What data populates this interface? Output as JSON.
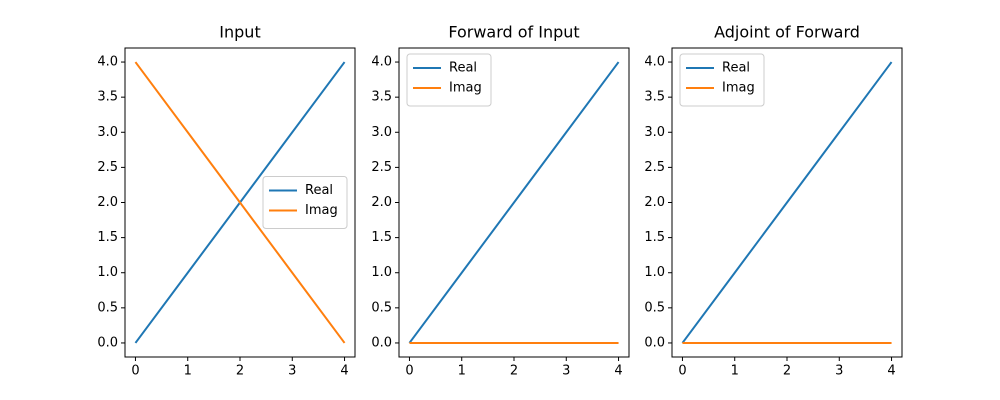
{
  "chart_data": [
    {
      "type": "line",
      "title": "Input",
      "x": [
        0,
        1,
        2,
        3,
        4
      ],
      "series": [
        {
          "name": "Real",
          "color": "#1f77b4",
          "values": [
            0,
            1,
            2,
            3,
            4
          ]
        },
        {
          "name": "Imag",
          "color": "#ff7f0e",
          "values": [
            4,
            3,
            2,
            1,
            0
          ]
        }
      ],
      "xlim": [
        -0.2,
        4.2
      ],
      "ylim": [
        -0.2,
        4.2
      ],
      "xticks": [
        0,
        1,
        2,
        3,
        4
      ],
      "yticks": [
        {
          "value": 0,
          "label": "0.0"
        },
        {
          "value": 0.5,
          "label": "0.5"
        },
        {
          "value": 1,
          "label": "1.0"
        },
        {
          "value": 1.5,
          "label": "1.5"
        },
        {
          "value": 2,
          "label": "2.0"
        },
        {
          "value": 2.5,
          "label": "2.5"
        },
        {
          "value": 3,
          "label": "3.0"
        },
        {
          "value": 3.5,
          "label": "3.5"
        },
        {
          "value": 4,
          "label": "4.0"
        }
      ],
      "legend": "center right"
    },
    {
      "type": "line",
      "title": "Forward of Input",
      "x": [
        0,
        1,
        2,
        3,
        4
      ],
      "series": [
        {
          "name": "Real",
          "color": "#1f77b4",
          "values": [
            0,
            1,
            2,
            3,
            4
          ]
        },
        {
          "name": "Imag",
          "color": "#ff7f0e",
          "values": [
            0,
            0,
            0,
            0,
            0
          ]
        }
      ],
      "xlim": [
        -0.2,
        4.2
      ],
      "ylim": [
        -0.2,
        4.2
      ],
      "xticks": [
        0,
        1,
        2,
        3,
        4
      ],
      "yticks": [
        {
          "value": 0,
          "label": "0.0"
        },
        {
          "value": 0.5,
          "label": "0.5"
        },
        {
          "value": 1,
          "label": "1.0"
        },
        {
          "value": 1.5,
          "label": "1.5"
        },
        {
          "value": 2,
          "label": "2.0"
        },
        {
          "value": 2.5,
          "label": "2.5"
        },
        {
          "value": 3,
          "label": "3.0"
        },
        {
          "value": 3.5,
          "label": "3.5"
        },
        {
          "value": 4,
          "label": "4.0"
        }
      ],
      "legend": "upper left"
    },
    {
      "type": "line",
      "title": "Adjoint of Forward",
      "x": [
        0,
        1,
        2,
        3,
        4
      ],
      "series": [
        {
          "name": "Real",
          "color": "#1f77b4",
          "values": [
            0,
            1,
            2,
            3,
            4
          ]
        },
        {
          "name": "Imag",
          "color": "#ff7f0e",
          "values": [
            0,
            0,
            0,
            0,
            0
          ]
        }
      ],
      "xlim": [
        -0.2,
        4.2
      ],
      "ylim": [
        -0.2,
        4.2
      ],
      "xticks": [
        0,
        1,
        2,
        3,
        4
      ],
      "yticks": [
        {
          "value": 0,
          "label": "0.0"
        },
        {
          "value": 0.5,
          "label": "0.5"
        },
        {
          "value": 1,
          "label": "1.0"
        },
        {
          "value": 1.5,
          "label": "1.5"
        },
        {
          "value": 2,
          "label": "2.0"
        },
        {
          "value": 2.5,
          "label": "2.5"
        },
        {
          "value": 3,
          "label": "3.0"
        },
        {
          "value": 3.5,
          "label": "3.5"
        },
        {
          "value": 4,
          "label": "4.0"
        }
      ],
      "legend": "upper left"
    }
  ]
}
